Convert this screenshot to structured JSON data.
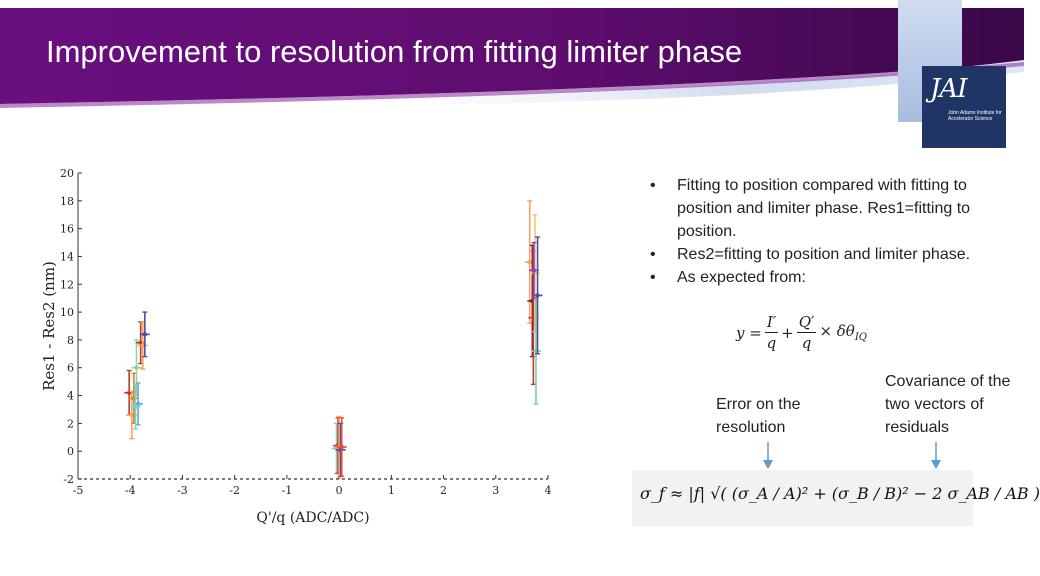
{
  "slide": {
    "title": "Improvement to resolution from fitting limiter phase",
    "logo_text": "John Adams Institute for Accelerator Science",
    "logo_mark": "JAI"
  },
  "bullets": [
    "Fitting to position compared with fitting to position and limiter phase. Res1=fitting to position.",
    "Res2=fitting to position and limiter phase.",
    "As expected from:"
  ],
  "equation": {
    "lhs": "y =",
    "frac1_num": "I′",
    "frac1_den": "q",
    "plus": "+",
    "frac2_num": "Q′",
    "frac2_den": "q",
    "tail": "× δθ",
    "tail_sub": "IQ"
  },
  "notes": {
    "error": "Error on the resolution",
    "covariance": "Covariance of the two vectors of residuals"
  },
  "formula": "σ_f ≈ |f| √( (σ_A / A)² + (σ_B / B)² − 2 σ_AB / AB )",
  "colors": {
    "banner_dark": "#5a0b6e",
    "banner_mid": "#7b1fa2",
    "arrow": "#5b9bd5",
    "logo_bg": "#1f3566"
  },
  "chart_data": {
    "type": "scatter",
    "title": "",
    "xlabel": "Q'/q (ADC/ADC)",
    "ylabel": "Res1 - Res2 (nm)",
    "xlim": [
      -5,
      4
    ],
    "ylim": [
      -2,
      20
    ],
    "xticks": [
      "-5",
      "-4",
      "-3",
      "-2",
      "-1",
      "0",
      "1",
      "2",
      "3",
      "4"
    ],
    "yticks": [
      "-2",
      "0",
      "2",
      "4",
      "6",
      "8",
      "10",
      "12",
      "14",
      "16",
      "18",
      "20"
    ],
    "grid": false,
    "points": [
      {
        "x": -4.02,
        "y": 4.2,
        "err": 1.6,
        "color": "#c0392b"
      },
      {
        "x": -3.97,
        "y": 2.6,
        "err": 1.7,
        "color": "#f4a460"
      },
      {
        "x": -3.93,
        "y": 3.8,
        "err": 1.8,
        "color": "#e67e22"
      },
      {
        "x": -3.88,
        "y": 6.0,
        "err": 2.0,
        "color": "#8fd3a8"
      },
      {
        "x": -3.85,
        "y": 3.4,
        "err": 1.5,
        "color": "#5dade2"
      },
      {
        "x": -3.8,
        "y": 7.8,
        "err": 1.5,
        "color": "#c0392b"
      },
      {
        "x": -3.76,
        "y": 7.6,
        "err": 1.7,
        "color": "#f4a460"
      },
      {
        "x": -3.72,
        "y": 8.4,
        "err": 1.6,
        "color": "#4a4fa3"
      },
      {
        "x": -3.9,
        "y": 3.2,
        "err": 1.6,
        "color": "#76d7c4"
      },
      {
        "x": -0.05,
        "y": 0.2,
        "err": 1.8,
        "color": "#76d7c4"
      },
      {
        "x": -0.02,
        "y": 0.4,
        "err": 2.0,
        "color": "#c0392b"
      },
      {
        "x": 0.0,
        "y": 0.3,
        "err": 2.2,
        "color": "#f4a460"
      },
      {
        "x": 0.03,
        "y": 0.1,
        "err": 1.9,
        "color": "#4a4fa3"
      },
      {
        "x": 0.05,
        "y": 0.3,
        "err": 2.1,
        "color": "#e74c3c"
      },
      {
        "x": 3.65,
        "y": 13.6,
        "err": 4.4,
        "color": "#f4a460"
      },
      {
        "x": 3.7,
        "y": 10.8,
        "err": 4.0,
        "color": "#7b1c3a"
      },
      {
        "x": 3.72,
        "y": 9.6,
        "err": 4.8,
        "color": "#c0392b"
      },
      {
        "x": 3.75,
        "y": 12.8,
        "err": 4.2,
        "color": "#f8c471"
      },
      {
        "x": 3.77,
        "y": 7.2,
        "err": 3.8,
        "color": "#7dcea0"
      },
      {
        "x": 3.8,
        "y": 11.2,
        "err": 4.2,
        "color": "#4a4fa3"
      },
      {
        "x": 3.73,
        "y": 13.0,
        "err": 2.0,
        "color": "#8e44ad"
      }
    ]
  }
}
